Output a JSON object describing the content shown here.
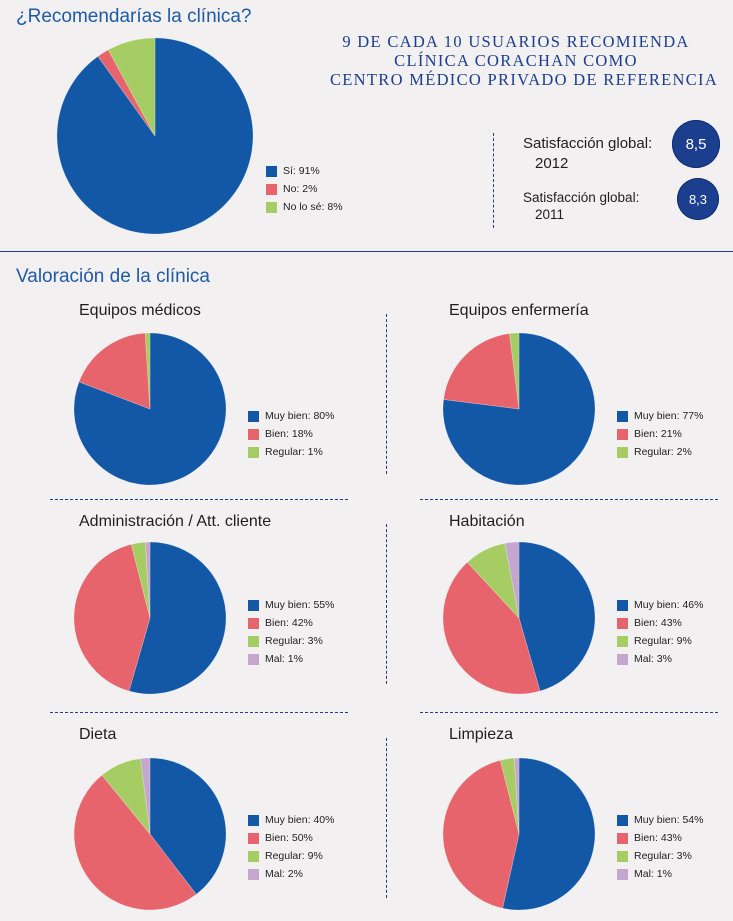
{
  "colors": {
    "blue": "#1358a6",
    "red": "#e8646c",
    "green": "#a6cd63",
    "lilac": "#c5a6cf",
    "navy": "#1b3f8e"
  },
  "recommend": {
    "title": "¿Recomendarías la clínica?",
    "headline": [
      "9 DE CADA 10 USUARIOS RECOMIENDA",
      "CLÍNICA CORACHAN COMO",
      "CENTRO MÉDICO PRIVADO DE REFERENCIA"
    ],
    "satisfaction": [
      {
        "label": "Satisfacción global:",
        "year": "2012",
        "score": "8,5"
      },
      {
        "label": "Satisfacción global:",
        "year": "2011",
        "score": "8,3"
      }
    ]
  },
  "valoracion": {
    "title": "Valoración de la clínica"
  },
  "chart_data": [
    {
      "type": "pie",
      "title": "¿Recomendarías la clínica?",
      "slices": [
        {
          "label": "Sí: 91%",
          "value": 91,
          "color": "#1358a6"
        },
        {
          "label": "No: 2%",
          "value": 2,
          "color": "#e8646c"
        },
        {
          "label": "No lo sé: 8%",
          "value": 8,
          "color": "#a6cd63"
        }
      ]
    },
    {
      "type": "pie",
      "title": "Equipos médicos",
      "slices": [
        {
          "label": "Muy bien: 80%",
          "value": 80,
          "color": "#1358a6"
        },
        {
          "label": "Bien: 18%",
          "value": 18,
          "color": "#e8646c"
        },
        {
          "label": "Regular: 1%",
          "value": 1,
          "color": "#a6cd63"
        }
      ]
    },
    {
      "type": "pie",
      "title": "Equipos enfermería",
      "slices": [
        {
          "label": "Muy bien: 77%",
          "value": 77,
          "color": "#1358a6"
        },
        {
          "label": "Bien: 21%",
          "value": 21,
          "color": "#e8646c"
        },
        {
          "label": "Regular: 2%",
          "value": 2,
          "color": "#a6cd63"
        }
      ]
    },
    {
      "type": "pie",
      "title": "Administración / Att. cliente",
      "slices": [
        {
          "label": "Muy bien: 55%",
          "value": 55,
          "color": "#1358a6"
        },
        {
          "label": "Bien: 42%",
          "value": 42,
          "color": "#e8646c"
        },
        {
          "label": "Regular: 3%",
          "value": 3,
          "color": "#a6cd63"
        },
        {
          "label": "Mal: 1%",
          "value": 1,
          "color": "#c5a6cf"
        }
      ]
    },
    {
      "type": "pie",
      "title": "Habitación",
      "slices": [
        {
          "label": "Muy bien: 46%",
          "value": 46,
          "color": "#1358a6"
        },
        {
          "label": "Bien: 43%",
          "value": 43,
          "color": "#e8646c"
        },
        {
          "label": "Regular: 9%",
          "value": 9,
          "color": "#a6cd63"
        },
        {
          "label": "Mal: 3%",
          "value": 3,
          "color": "#c5a6cf"
        }
      ]
    },
    {
      "type": "pie",
      "title": "Dieta",
      "slices": [
        {
          "label": "Muy bien: 40%",
          "value": 40,
          "color": "#1358a6"
        },
        {
          "label": "Bien: 50%",
          "value": 50,
          "color": "#e8646c"
        },
        {
          "label": "Regular: 9%",
          "value": 9,
          "color": "#a6cd63"
        },
        {
          "label": "Mal: 2%",
          "value": 2,
          "color": "#c5a6cf"
        }
      ]
    },
    {
      "type": "pie",
      "title": "Limpieza",
      "slices": [
        {
          "label": "Muy bien: 54%",
          "value": 54,
          "color": "#1358a6"
        },
        {
          "label": "Bien: 43%",
          "value": 43,
          "color": "#e8646c"
        },
        {
          "label": "Regular: 3%",
          "value": 3,
          "color": "#a6cd63"
        },
        {
          "label": "Mal: 1%",
          "value": 1,
          "color": "#c5a6cf"
        }
      ]
    }
  ]
}
